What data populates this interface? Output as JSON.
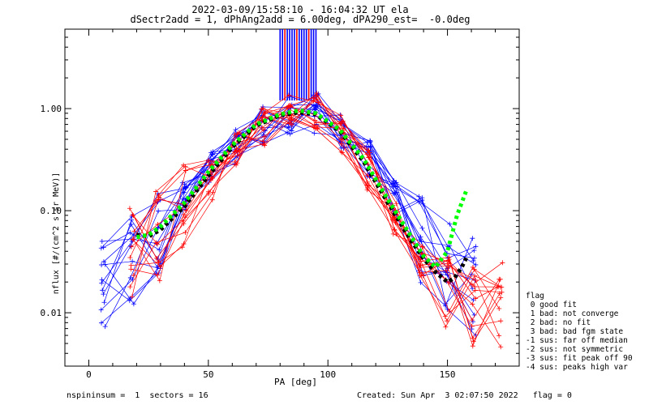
{
  "header": {
    "title_line1": "2022-03-09/15:58:10 - 16:04:32 UT ela",
    "title_line2": "dSectr2add = 1, dPhAng2add = 6.00deg, dPA290_est=  -0.0deg"
  },
  "footer": {
    "left": "nspininsum =  1  sectors = 16",
    "right": "Created: Sun Apr  3 02:07:50 2022   flag = 0"
  },
  "legend": {
    "title": "flag",
    "items": [
      " 0 good fit",
      " 1 bad: not converge",
      " 2 bad: no fit",
      " 3 bad: bad fgm state",
      "-1 sus: far off median",
      "-2 sus: not symmetric",
      "-3 sus: fit peak off 90",
      "-4 sus: peaks high var"
    ]
  },
  "chart_data": {
    "type": "line",
    "xlabel": "PA [deg]",
    "ylabel": "nflux [#/(cm^2 s sr MeV)]",
    "xlim": [
      -10,
      180
    ],
    "ylim": [
      0.003,
      6.0
    ],
    "yscale": "log",
    "x_ticks": [
      0,
      50,
      100,
      150
    ],
    "y_ticks": [
      0.01,
      0.1,
      1.0
    ],
    "y_tick_labels": [
      "0.01",
      "0.10",
      "1.00"
    ],
    "series": [
      {
        "color": "#0000ff",
        "style": "thin lines with + markers",
        "x": [
          6,
          18,
          29,
          40,
          51,
          62,
          73,
          84,
          95,
          106,
          117,
          128,
          139,
          150,
          161
        ],
        "y": [
          0.022,
          0.035,
          0.06,
          0.12,
          0.25,
          0.45,
          0.7,
          0.85,
          0.9,
          0.6,
          0.32,
          0.13,
          0.05,
          0.025,
          0.018
        ]
      },
      {
        "color": "#ff0000",
        "style": "thin lines with + markers",
        "x": [
          18,
          29,
          40,
          51,
          62,
          73,
          84,
          95,
          106,
          117,
          128,
          139,
          150,
          161,
          172
        ],
        "y": [
          0.04,
          0.06,
          0.1,
          0.2,
          0.4,
          0.65,
          0.88,
          0.92,
          0.55,
          0.25,
          0.09,
          0.035,
          0.018,
          0.014,
          0.012
        ]
      },
      {
        "color": "#000000",
        "style": "thick dashed fit",
        "x": [
          20,
          25,
          30,
          40,
          50,
          60,
          70,
          80,
          88,
          95,
          105,
          115,
          125,
          135,
          140,
          145,
          150,
          153,
          156,
          158
        ],
        "y": [
          0.058,
          0.056,
          0.065,
          0.11,
          0.22,
          0.42,
          0.68,
          0.86,
          0.92,
          0.88,
          0.6,
          0.3,
          0.12,
          0.05,
          0.034,
          0.025,
          0.02,
          0.022,
          0.028,
          0.035
        ]
      },
      {
        "color": "#00ff00",
        "style": "thick dashed fit",
        "x": [
          20,
          25,
          30,
          40,
          50,
          60,
          70,
          80,
          88,
          95,
          105,
          115,
          125,
          135,
          140,
          145,
          150,
          152,
          154,
          156,
          158
        ],
        "y": [
          0.055,
          0.058,
          0.07,
          0.12,
          0.24,
          0.44,
          0.7,
          0.88,
          0.96,
          0.9,
          0.62,
          0.32,
          0.13,
          0.055,
          0.036,
          0.028,
          0.04,
          0.06,
          0.09,
          0.12,
          0.16
        ]
      }
    ],
    "vertical_bars": {
      "color_primary": "#0000ff",
      "color_secondary": "#ff0000",
      "x": [
        80,
        81,
        82,
        83,
        84,
        85,
        86,
        87,
        88,
        89,
        90,
        91,
        92,
        93,
        94,
        95
      ]
    },
    "grid": false,
    "legend_placement": "right"
  }
}
